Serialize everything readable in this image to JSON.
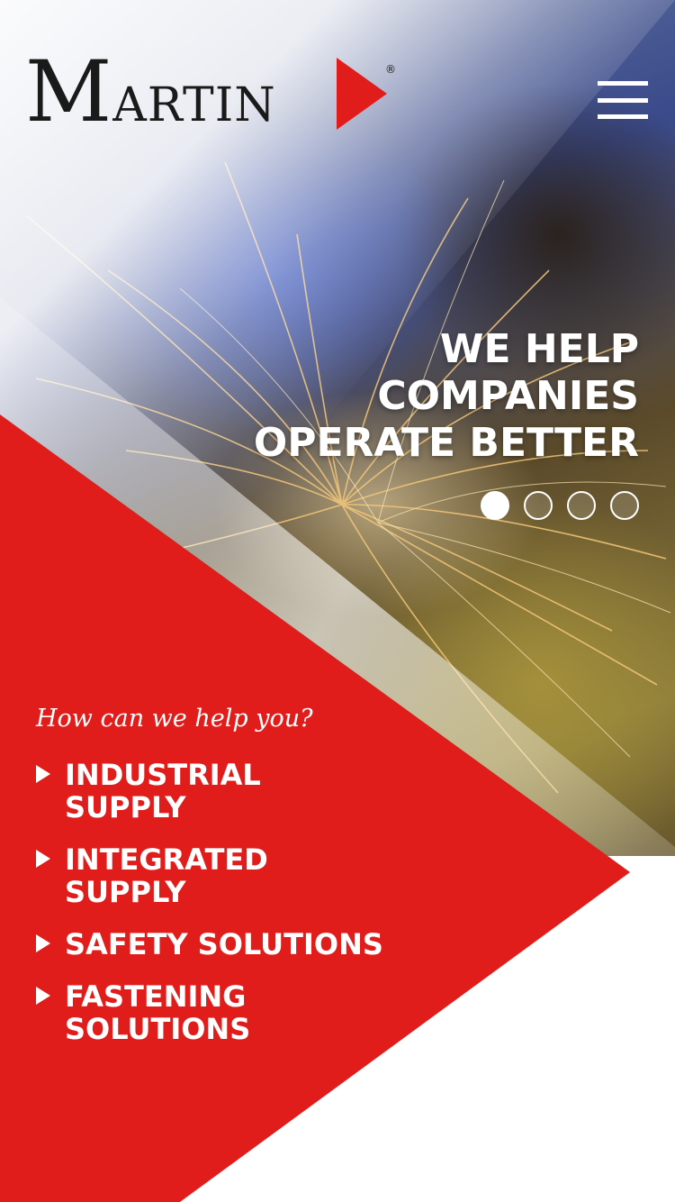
{
  "brand": {
    "logo_initial": "M",
    "logo_rest": "ARTIN",
    "registered_mark": "®",
    "accent_color": "#e11d1b"
  },
  "header": {
    "menu_icon": "hamburger-menu-icon"
  },
  "hero": {
    "headline_lines": [
      "WE HELP",
      "COMPANIES",
      "OPERATE BETTER"
    ],
    "slides_total": 4,
    "active_slide": 1
  },
  "help": {
    "question": "How can we help you?",
    "items": [
      {
        "label": "INDUSTRIAL\nSUPPLY"
      },
      {
        "label": "INTEGRATED\nSUPPLY"
      },
      {
        "label": "SAFETY SOLUTIONS"
      },
      {
        "label": "FASTENING\nSOLUTIONS"
      }
    ]
  }
}
